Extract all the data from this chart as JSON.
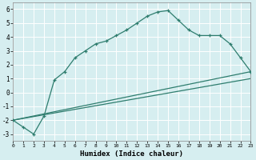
{
  "xlabel": "Humidex (Indice chaleur)",
  "bg_color": "#d6eef0",
  "grid_color": "#ffffff",
  "line_color": "#2e7d6e",
  "xlim": [
    0,
    23
  ],
  "ylim": [
    -3.5,
    6.5
  ],
  "yticks": [
    -3,
    -2,
    -1,
    0,
    1,
    2,
    3,
    4,
    5,
    6
  ],
  "xticks": [
    0,
    1,
    2,
    3,
    4,
    5,
    6,
    7,
    8,
    9,
    10,
    11,
    12,
    13,
    14,
    15,
    16,
    17,
    18,
    19,
    20,
    21,
    22,
    23
  ],
  "curve_x": [
    0,
    1,
    2,
    3,
    4,
    5,
    6,
    7,
    8,
    9,
    10,
    11,
    12,
    13,
    14,
    15,
    16,
    17,
    18,
    19,
    20,
    21,
    22,
    23
  ],
  "curve_y": [
    -2.0,
    -2.5,
    -3.0,
    -1.7,
    0.9,
    1.5,
    2.5,
    3.0,
    3.5,
    3.7,
    4.1,
    4.5,
    5.0,
    5.5,
    5.8,
    5.9,
    5.2,
    4.5,
    4.1,
    4.1,
    4.1,
    3.5,
    2.5,
    1.5
  ],
  "line1_x": [
    0,
    23
  ],
  "line1_y": [
    -2.0,
    1.5
  ],
  "line2_x": [
    0,
    23
  ],
  "line2_y": [
    -2.0,
    1.0
  ]
}
